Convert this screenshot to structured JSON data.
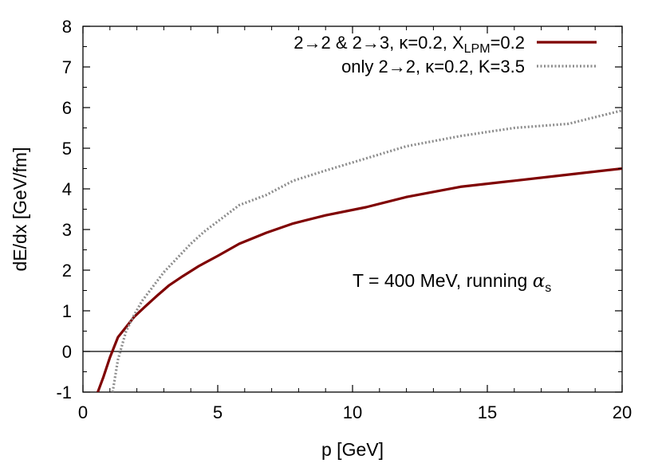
{
  "chart_data": {
    "type": "line",
    "xlabel": "p [GeV]",
    "ylabel": "dE/dx [GeV/fm]",
    "xlim": [
      0,
      20
    ],
    "ylim": [
      -1,
      8
    ],
    "x_ticks": [
      0,
      5,
      10,
      15,
      20
    ],
    "y_ticks": [
      -1,
      0,
      1,
      2,
      3,
      4,
      5,
      6,
      7,
      8
    ],
    "x_tick_labels": [
      "0",
      "5",
      "10",
      "15",
      "20"
    ],
    "y_tick_labels": [
      "-1",
      "0",
      "1",
      "2",
      "3",
      "4",
      "5",
      "6",
      "7",
      "8"
    ],
    "grid": false,
    "legend_position": "top-right",
    "reference_line": {
      "y": 0
    },
    "annotation": {
      "main": "T = 400 MeV, running ",
      "symbol": "α",
      "subscript": "s"
    },
    "series": [
      {
        "name": "2→2 & 2→3, κ=0.2, X_LPM=0.2",
        "legend_main": "2→2 & 2→3, κ=0.2, X",
        "legend_sub": "LPM",
        "legend_tail": "=0.2",
        "color": "#7f0000",
        "style": "solid",
        "x": [
          0.55,
          0.75,
          1.0,
          1.3,
          1.6,
          1.9,
          2.3,
          2.8,
          3.2,
          3.7,
          4.3,
          5.0,
          5.8,
          6.8,
          7.8,
          9.0,
          10.5,
          12.0,
          14.0,
          16.0,
          18.0,
          20.0
        ],
        "y": [
          -1.0,
          -0.65,
          -0.15,
          0.35,
          0.6,
          0.85,
          1.1,
          1.4,
          1.63,
          1.85,
          2.1,
          2.35,
          2.65,
          2.92,
          3.15,
          3.35,
          3.55,
          3.8,
          4.05,
          4.2,
          4.35,
          4.5
        ]
      },
      {
        "name": "only 2→2, κ=0.2, K=3.5",
        "legend_main": "only 2→2, κ=0.2, K=3.5",
        "color": "#8c8c8c",
        "style": "dotted",
        "x": [
          1.1,
          1.3,
          1.6,
          1.9,
          2.2,
          2.6,
          3.0,
          3.5,
          4.0,
          4.5,
          5.2,
          5.8,
          6.8,
          7.8,
          9.0,
          10.5,
          12.0,
          14.0,
          16.0,
          18.0,
          20.0
        ],
        "y": [
          -1.0,
          -0.2,
          0.5,
          0.9,
          1.25,
          1.6,
          1.95,
          2.3,
          2.65,
          2.95,
          3.3,
          3.6,
          3.85,
          4.2,
          4.45,
          4.75,
          5.05,
          5.3,
          5.5,
          5.6,
          5.93
        ]
      }
    ]
  }
}
